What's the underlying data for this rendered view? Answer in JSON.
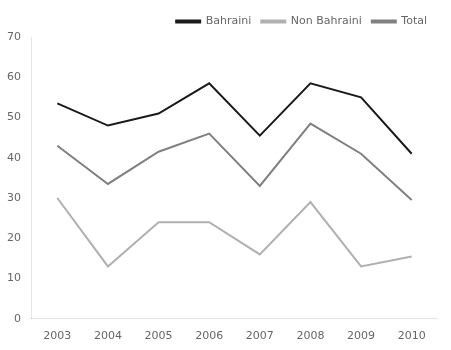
{
  "chart_data": {
    "type": "line",
    "x": [
      2003,
      2004,
      2005,
      2006,
      2007,
      2008,
      2009,
      2010
    ],
    "series": [
      {
        "name": "Bahraini",
        "color": "#1a1a1a",
        "values": [
          53.5,
          48,
          51,
          58.5,
          45.5,
          58.5,
          55,
          41
        ]
      },
      {
        "name": "Non Bahraini",
        "color": "#b0b0b0",
        "values": [
          30,
          13,
          24,
          24,
          16,
          29,
          13,
          15.5
        ]
      },
      {
        "name": "Total",
        "color": "#808080",
        "values": [
          43,
          33.5,
          41.5,
          46,
          33,
          48.5,
          41,
          29.5
        ]
      }
    ],
    "xlim": [
      2002.5,
      2010.5
    ],
    "xticks": [
      2003,
      2004,
      2005,
      2006,
      2007,
      2008,
      2009,
      2010
    ],
    "ylim": [
      0,
      70
    ],
    "yticks": [
      0,
      10,
      20,
      30,
      40,
      50,
      60,
      70
    ],
    "grid": false,
    "legend": "upper right"
  }
}
